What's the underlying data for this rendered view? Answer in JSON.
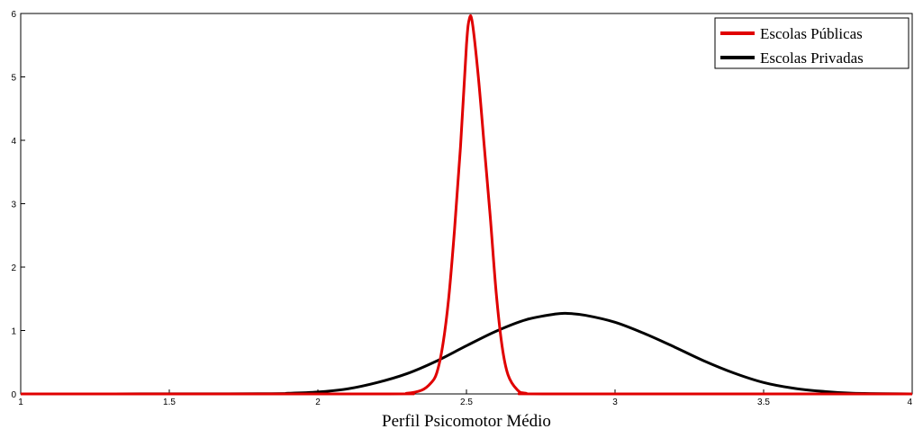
{
  "chart_data": {
    "type": "line",
    "title": "",
    "xlabel": "Perfil Psicomotor Médio",
    "ylabel": "",
    "xlim": [
      1,
      4
    ],
    "ylim": [
      0,
      6
    ],
    "xticks": [
      1,
      1.5,
      2,
      2.5,
      3,
      3.5,
      4
    ],
    "xtick_labels": [
      "1",
      "1.5",
      "2",
      "2.5",
      "3",
      "3.5",
      "4"
    ],
    "yticks": [
      0,
      1,
      2,
      3,
      4,
      5,
      6
    ],
    "ytick_labels": [
      "0",
      "1",
      "2",
      "3",
      "4",
      "5",
      "6"
    ],
    "grid": false,
    "legend_position": "top-right",
    "series": [
      {
        "name": "Escolas Públicas",
        "color": "#e00000",
        "x": [
          1.0,
          2.2,
          2.3,
          2.35,
          2.38,
          2.4,
          2.42,
          2.44,
          2.46,
          2.48,
          2.5,
          2.51,
          2.52,
          2.54,
          2.56,
          2.58,
          2.6,
          2.62,
          2.64,
          2.67,
          2.7,
          2.8,
          4.0
        ],
        "y": [
          0,
          0,
          0.01,
          0.06,
          0.17,
          0.33,
          0.76,
          1.5,
          2.6,
          3.9,
          5.5,
          5.92,
          5.85,
          5.0,
          3.9,
          2.8,
          1.6,
          0.75,
          0.3,
          0.07,
          0.01,
          0,
          0
        ]
      },
      {
        "name": "Escolas Privadas",
        "color": "#000000",
        "x": [
          1.0,
          1.8,
          1.9,
          2.0,
          2.1,
          2.2,
          2.3,
          2.4,
          2.5,
          2.6,
          2.7,
          2.8,
          2.84,
          2.9,
          3.0,
          3.1,
          3.2,
          3.3,
          3.4,
          3.5,
          3.6,
          3.7,
          3.8,
          4.0
        ],
        "y": [
          0,
          0.003,
          0.01,
          0.03,
          0.08,
          0.18,
          0.32,
          0.52,
          0.76,
          0.99,
          1.17,
          1.26,
          1.27,
          1.24,
          1.13,
          0.95,
          0.74,
          0.52,
          0.33,
          0.18,
          0.09,
          0.04,
          0.01,
          0
        ]
      }
    ]
  }
}
